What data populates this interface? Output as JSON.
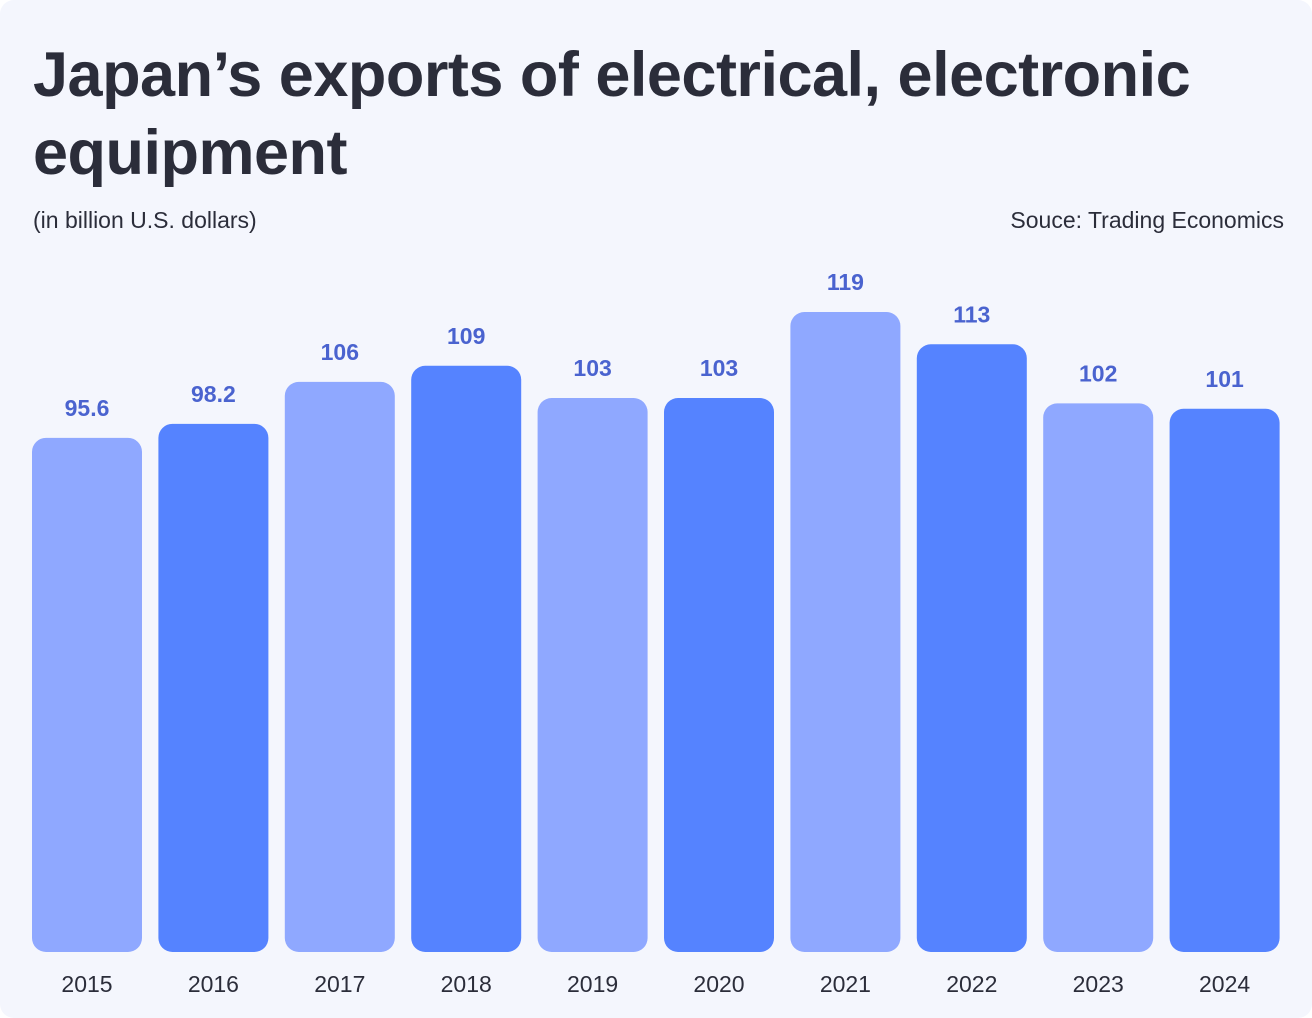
{
  "header": {
    "title": "Japan’s exports of electrical, electronic equipment",
    "subtitle": "(in billion U.S. dollars)",
    "source": "Souce: Trading Economics"
  },
  "colors": {
    "light_bar": "#8fa8ff",
    "dark_bar": "#5583ff",
    "value_text": "#4a63cf",
    "text": "#2b2d3a",
    "background": "#f4f6fd"
  },
  "chart_data": {
    "type": "bar",
    "title": "Japan’s exports of electrical, electronic equipment",
    "subtitle": "(in billion U.S. dollars)",
    "categories": [
      "2015",
      "2016",
      "2017",
      "2018",
      "2019",
      "2020",
      "2021",
      "2022",
      "2023",
      "2024"
    ],
    "values": [
      95.6,
      98.2,
      106,
      109,
      103,
      103,
      119,
      113,
      102,
      101
    ],
    "value_labels": [
      "95.6",
      "98.2",
      "106",
      "109",
      "103",
      "103",
      "119",
      "113",
      "102",
      "101"
    ],
    "bar_colors": [
      "#8fa8ff",
      "#5583ff",
      "#8fa8ff",
      "#5583ff",
      "#8fa8ff",
      "#5583ff",
      "#8fa8ff",
      "#5583ff",
      "#8fa8ff",
      "#5583ff"
    ],
    "ylim": [
      0,
      119
    ],
    "grid": false,
    "legend": "none",
    "xlabel": "",
    "ylabel": ""
  }
}
